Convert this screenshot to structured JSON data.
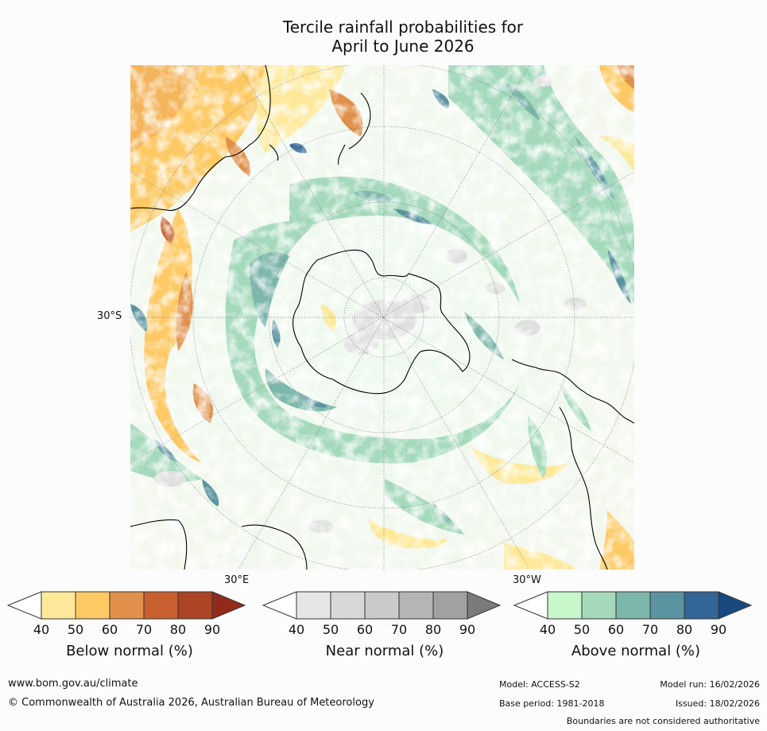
{
  "title": "Tercile rainfall probabilities for\nApril to June 2026",
  "map": {
    "lat_label": "30°S",
    "lon_label_east": "30°E",
    "lon_label_west": "30°W"
  },
  "legends": [
    {
      "caption": "Below normal (%)",
      "ticks": [
        "40",
        "50",
        "60",
        "70",
        "80",
        "90"
      ],
      "colors": [
        "#ffffff",
        "#fee99a",
        "#fdc964",
        "#e0904a",
        "#c8602f",
        "#ad4425",
        "#922a1c"
      ]
    },
    {
      "caption": "Near normal (%)",
      "ticks": [
        "40",
        "50",
        "60",
        "70",
        "80",
        "90"
      ],
      "colors": [
        "#ffffff",
        "#e6e6e6",
        "#d8d8d8",
        "#cacaca",
        "#b5b5b5",
        "#a1a1a1",
        "#7b7b7b"
      ]
    },
    {
      "caption": "Above normal (%)",
      "ticks": [
        "40",
        "50",
        "60",
        "70",
        "80",
        "90"
      ],
      "colors": [
        "#ffffff",
        "#c8f7cc",
        "#a4d9bb",
        "#7db6ab",
        "#5b93a1",
        "#336597",
        "#194a7f"
      ]
    }
  ],
  "footer": {
    "url": "www.bom.gov.au/climate",
    "copyright": "© Commonwealth of Australia 2026, Australian Bureau of Meteorology",
    "model": "Model: ACCESS-S2",
    "base_period": "Base period: 1981-2018",
    "model_run": "Model run: 16/02/2026",
    "issued": "Issued: 18/02/2026",
    "disclaimer": "Boundaries are not considered authoritative"
  }
}
